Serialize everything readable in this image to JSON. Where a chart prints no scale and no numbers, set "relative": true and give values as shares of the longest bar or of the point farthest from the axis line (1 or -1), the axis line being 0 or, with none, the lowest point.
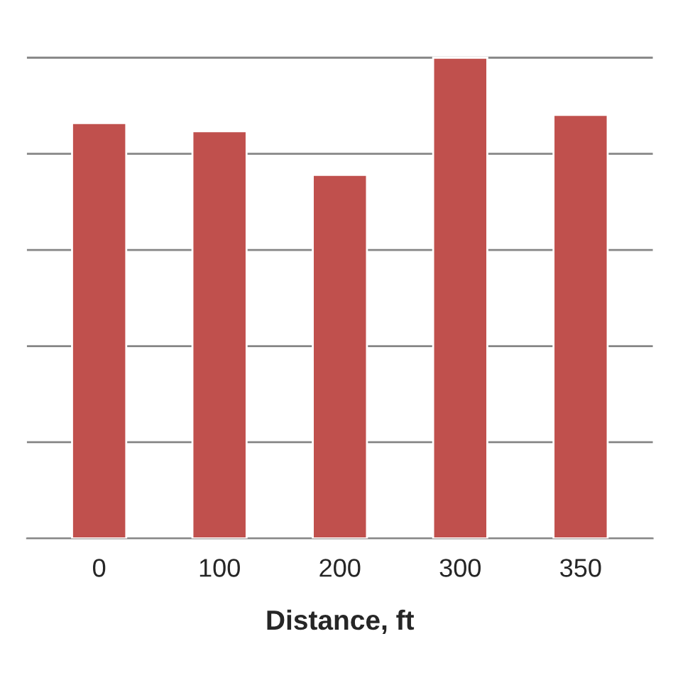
{
  "chart_data": {
    "type": "bar",
    "xlabel": "Distance, ft",
    "categories": [
      "0",
      "100",
      "200",
      "300",
      "350"
    ],
    "values": [
      0.864,
      0.847,
      0.756,
      1,
      0.881
    ],
    "color": "#c0504d",
    "relative": true,
    "grid": "y"
  }
}
